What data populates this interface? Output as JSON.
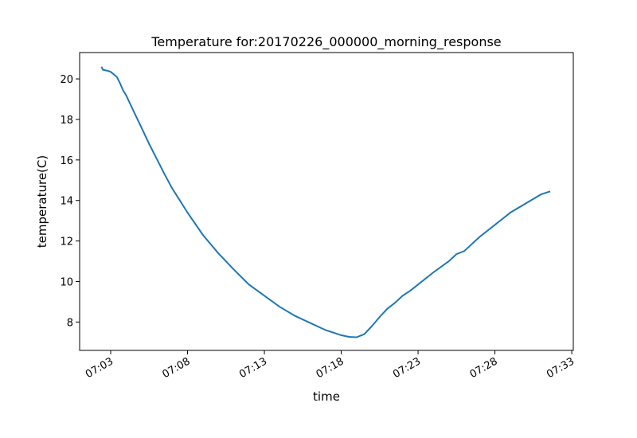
{
  "chart_data": {
    "type": "line",
    "title": "Temperature for:20170226_000000_morning_response",
    "xlabel": "time",
    "ylabel": "temperature(C)",
    "x_tick_labels": [
      "07:03",
      "07:08",
      "07:13",
      "07:18",
      "07:23",
      "07:28",
      "07:33"
    ],
    "x_ticks_minutes": [
      3,
      8,
      13,
      18,
      23,
      28,
      33
    ],
    "y_ticks": [
      8,
      10,
      12,
      14,
      16,
      18,
      20
    ],
    "xlim": [
      0.98,
      33.1
    ],
    "ylim": [
      6.6,
      21.3
    ],
    "grid": false,
    "line_color": "#1f77b4",
    "series": [
      {
        "x": [
          2.4,
          2.5,
          2.8,
          3.0,
          3.4,
          3.6,
          3.8,
          4.0,
          4.5,
          5.0,
          5.5,
          6.0,
          6.5,
          7.0,
          7.5,
          8.0,
          8.5,
          9.0,
          10.0,
          11.0,
          12.0,
          13.0,
          14.0,
          15.0,
          16.0,
          17.0,
          18.0,
          18.5,
          19.0,
          19.5,
          20.0,
          20.5,
          21.0,
          21.5,
          22.0,
          22.5,
          23.0,
          24.0,
          25.0,
          25.5,
          26.0,
          27.0,
          28.0,
          29.0,
          30.0,
          31.0,
          31.6
        ],
        "y": [
          20.6,
          20.45,
          20.4,
          20.35,
          20.1,
          19.8,
          19.45,
          19.2,
          18.4,
          17.6,
          16.8,
          16.05,
          15.3,
          14.6,
          14.0,
          13.4,
          12.85,
          12.3,
          11.4,
          10.6,
          9.85,
          9.3,
          8.75,
          8.3,
          7.95,
          7.6,
          7.35,
          7.27,
          7.25,
          7.4,
          7.8,
          8.25,
          8.65,
          8.95,
          9.3,
          9.55,
          9.85,
          10.45,
          11.0,
          11.35,
          11.5,
          12.2,
          12.8,
          13.4,
          13.85,
          14.3,
          14.45
        ]
      }
    ]
  }
}
